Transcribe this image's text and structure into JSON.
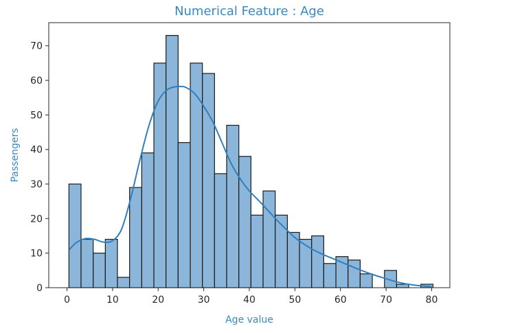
{
  "chart_data": {
    "type": "bar",
    "subtype": "histogram_with_kde",
    "title": "Numerical Feature : Age",
    "xlabel": "Age value",
    "ylabel": "Passengers",
    "xlim": [
      -4,
      84
    ],
    "ylim": [
      0,
      76.7
    ],
    "x_ticks": [
      0,
      10,
      20,
      30,
      40,
      50,
      60,
      70,
      80
    ],
    "y_ticks": [
      0,
      10,
      20,
      30,
      40,
      50,
      60,
      70
    ],
    "grid": false,
    "colors": {
      "bar_fill": "#8bb6d9",
      "bar_edge": "#1a1a1a",
      "kde_line": "#2f7fbf",
      "title": "#3a87c0",
      "axis_label": "#3a87c0"
    },
    "bins": [
      {
        "x0": 0.42,
        "x1": 3.08,
        "count": 30
      },
      {
        "x0": 3.08,
        "x1": 5.75,
        "count": 14
      },
      {
        "x0": 5.75,
        "x1": 8.41,
        "count": 10
      },
      {
        "x0": 8.41,
        "x1": 11.07,
        "count": 14
      },
      {
        "x0": 11.07,
        "x1": 13.73,
        "count": 3
      },
      {
        "x0": 13.73,
        "x1": 16.4,
        "count": 29
      },
      {
        "x0": 16.4,
        "x1": 19.06,
        "count": 39
      },
      {
        "x0": 19.06,
        "x1": 21.72,
        "count": 65
      },
      {
        "x0": 21.72,
        "x1": 24.38,
        "count": 73
      },
      {
        "x0": 24.38,
        "x1": 27.05,
        "count": 42
      },
      {
        "x0": 27.05,
        "x1": 29.71,
        "count": 65
      },
      {
        "x0": 29.71,
        "x1": 32.37,
        "count": 62
      },
      {
        "x0": 32.37,
        "x1": 35.03,
        "count": 33
      },
      {
        "x0": 35.03,
        "x1": 37.7,
        "count": 47
      },
      {
        "x0": 37.7,
        "x1": 40.36,
        "count": 38
      },
      {
        "x0": 40.36,
        "x1": 43.02,
        "count": 21
      },
      {
        "x0": 43.02,
        "x1": 45.68,
        "count": 28
      },
      {
        "x0": 45.68,
        "x1": 48.35,
        "count": 21
      },
      {
        "x0": 48.35,
        "x1": 51.01,
        "count": 16
      },
      {
        "x0": 51.01,
        "x1": 53.67,
        "count": 14
      },
      {
        "x0": 53.67,
        "x1": 56.33,
        "count": 15
      },
      {
        "x0": 56.33,
        "x1": 59.0,
        "count": 7
      },
      {
        "x0": 59.0,
        "x1": 61.66,
        "count": 9
      },
      {
        "x0": 61.66,
        "x1": 64.32,
        "count": 8
      },
      {
        "x0": 64.32,
        "x1": 66.98,
        "count": 4
      },
      {
        "x0": 66.98,
        "x1": 69.65,
        "count": 0
      },
      {
        "x0": 69.65,
        "x1": 72.31,
        "count": 5
      },
      {
        "x0": 72.31,
        "x1": 74.97,
        "count": 1
      },
      {
        "x0": 74.97,
        "x1": 77.63,
        "count": 0
      },
      {
        "x0": 77.63,
        "x1": 80.3,
        "count": 1
      }
    ],
    "kde": {
      "x": [
        0.5,
        2,
        4,
        6,
        8,
        10,
        12,
        14,
        16,
        18,
        20,
        22,
        24,
        25,
        26,
        28,
        30,
        32,
        34,
        36,
        38,
        40,
        42,
        44,
        46,
        48,
        50,
        52,
        54,
        56,
        58,
        60,
        62,
        64,
        66,
        68,
        70,
        72,
        74,
        76,
        78,
        80
      ],
      "y": [
        11,
        13,
        14.2,
        14,
        13.2,
        13.6,
        17,
        26,
        37,
        47,
        54,
        57.3,
        58.2,
        58.2,
        58,
        56.2,
        52.5,
        48,
        42,
        36,
        31.5,
        28,
        25.3,
        22.5,
        19.6,
        17,
        14.5,
        12.6,
        11,
        9.7,
        8.6,
        7.5,
        6.4,
        5.3,
        4.3,
        3.4,
        2.6,
        1.8,
        1.2,
        0.8,
        0.5,
        0.3
      ]
    }
  }
}
